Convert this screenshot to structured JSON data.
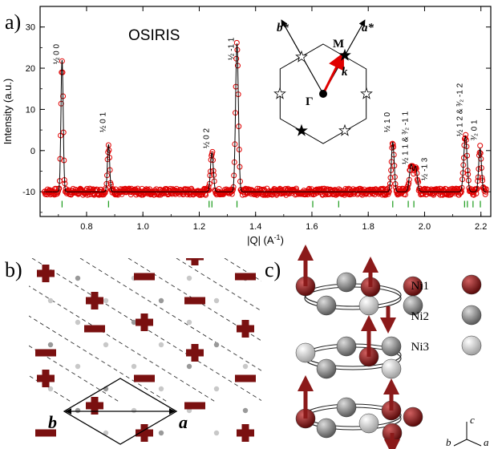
{
  "panel_labels": {
    "a": "a)",
    "b": "b)",
    "c": "c)"
  },
  "chart_data": {
    "type": "line",
    "instrument_label": "OSIRIS",
    "xlabel": "|Q| (A",
    "xlabel_sup": "-1",
    "xlabel_close": ")",
    "ylabel": "Intensity (a.u.)",
    "xlim": [
      0.65,
      2.22
    ],
    "ylim": [
      -16,
      35
    ],
    "x_ticks": [
      "0.6",
      "0.8",
      "1.0",
      "1.2",
      "1.4",
      "1.6",
      "1.8",
      "2.0",
      "2.2"
    ],
    "x_tick_values": [
      0.6,
      0.8,
      1.0,
      1.2,
      1.4,
      1.6,
      1.8,
      2.0,
      2.2
    ],
    "y_ticks": [
      "-10",
      "0",
      "10",
      "20",
      "30"
    ],
    "y_tick_values": [
      -10,
      0,
      10,
      20,
      30
    ],
    "baseline": -10,
    "peaks": [
      {
        "x": 0.713,
        "height": 32,
        "width": 0.004
      },
      {
        "x": 0.878,
        "height": 11.5,
        "width": 0.004
      },
      {
        "x": 1.245,
        "height": 9.5,
        "width": 0.005
      },
      {
        "x": 1.334,
        "height": 36,
        "width": 0.005
      },
      {
        "x": 1.887,
        "height": 12,
        "width": 0.005
      },
      {
        "x": 1.952,
        "height": 6.5,
        "width": 0.006
      },
      {
        "x": 1.968,
        "height": 6,
        "width": 0.006
      },
      {
        "x": 2.145,
        "height": 13.5,
        "width": 0.006
      },
      {
        "x": 2.197,
        "height": 10.5,
        "width": 0.005
      }
    ],
    "reflection_ticks": [
      0.713,
      0.878,
      1.235,
      1.245,
      1.334,
      1.603,
      1.695,
      1.887,
      1.942,
      1.962,
      2.142,
      2.152,
      2.172,
      2.198
    ],
    "peak_labels": [
      {
        "text": "½ 0 0",
        "x": 0.713
      },
      {
        "text": "½ 0 1",
        "x": 0.878
      },
      {
        "text": "½ 0 2",
        "x": 1.245
      },
      {
        "text": "½ -1 1",
        "x": 1.334
      },
      {
        "text": "½ 1 0",
        "x": 1.887
      },
      {
        "text": "½ 1 1 & ³⁄₂ -1 1",
        "x": 1.952
      },
      {
        "text": "½ -1 3",
        "x": 1.975
      },
      {
        "text": "½ 1 2 & ³⁄₂ -1 2",
        "x": 2.145
      },
      {
        "text": "³⁄₂ 0 1",
        "x": 2.197
      }
    ],
    "series_color": "#e00000"
  },
  "inset": {
    "b_star": "b*",
    "a_star": "a*",
    "M": "M",
    "k": "k",
    "Gamma": "Γ"
  },
  "panel_b": {
    "b_label": "b",
    "a_label": "a",
    "color": "#7a1010"
  },
  "panel_c": {
    "legend": [
      {
        "label": "Ni1",
        "color": "#8b1a1a"
      },
      {
        "label": "Ni2",
        "color": "#8c8c8c"
      },
      {
        "label": "Ni3",
        "color": "#e6e6e6"
      }
    ],
    "axis_c": "c",
    "axis_b": "b",
    "axis_a": "a"
  }
}
